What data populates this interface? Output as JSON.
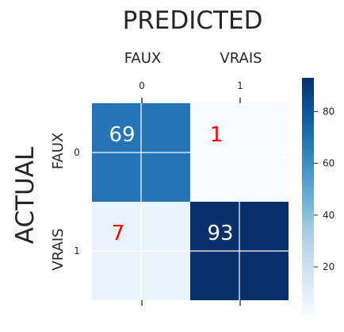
{
  "chart_data": {
    "type": "heatmap",
    "title": "PREDICTED",
    "ylabel": "ACTUAL",
    "x_category_labels": [
      "FAUX",
      "VRAIS"
    ],
    "y_category_labels": [
      "FAUX",
      "VRAIS"
    ],
    "x_ticks": [
      "0",
      "1"
    ],
    "y_ticks": [
      "0",
      "1"
    ],
    "matrix": [
      [
        69,
        1
      ],
      [
        7,
        93
      ]
    ],
    "colorbar": {
      "colormap": "Blues",
      "vmin": 1,
      "vmax": 93,
      "ticks": [
        20,
        40,
        60,
        80
      ],
      "tick_labels": [
        "20",
        "40",
        "60",
        "80"
      ]
    },
    "annotation_colors": {
      "diagonal": "#ffffff",
      "off_diagonal": "#ff0000"
    },
    "grid": true
  }
}
